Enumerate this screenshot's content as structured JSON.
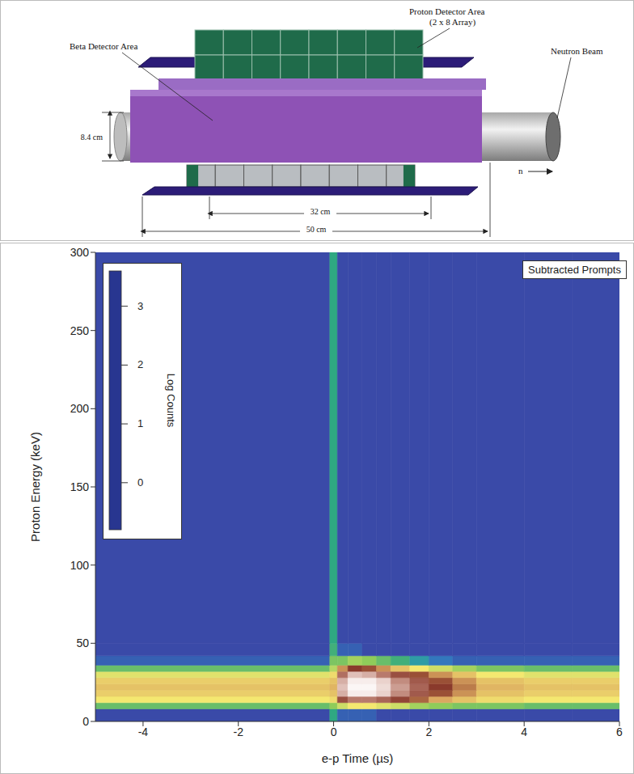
{
  "diagram": {
    "proton_label": [
      "Proton Detector Area",
      "(2 x 8 Array)"
    ],
    "beta_label": "Beta Detector Area",
    "beam_label": "Neutron Beam",
    "beam_arrow": "n",
    "dimensions": {
      "diameter": "8.4 cm",
      "detector_length": "32 cm",
      "total_length": "50 cm"
    },
    "proton_array": {
      "rows": 2,
      "cols": 8
    }
  },
  "chart_data": {
    "type": "heatmap",
    "xlabel": "e-p Time (µs)",
    "ylabel": "Proton Energy (keV)",
    "xlim": [
      -5,
      6
    ],
    "ylim": [
      0,
      300
    ],
    "xticks": [
      -4,
      -2,
      0,
      2,
      4,
      6
    ],
    "yticks": [
      0,
      50,
      100,
      150,
      200,
      250,
      300
    ],
    "x_edges": [
      -5,
      -0.08,
      0.08,
      0.3,
      0.6,
      0.9,
      1.2,
      1.6,
      2.0,
      2.5,
      3.0,
      4.0,
      5.0,
      6.0
    ],
    "y_edges": [
      0,
      8,
      12,
      16,
      20,
      24,
      28,
      32,
      36,
      42,
      50,
      300
    ],
    "z": [
      [
        -0.5,
        0.0,
        -0.4,
        -0.4,
        -0.4,
        -0.5,
        -0.5,
        -0.5,
        -0.5,
        -0.5,
        -0.5,
        -0.5,
        -0.5
      ],
      [
        0.3,
        0.5,
        0.8,
        1.0,
        1.0,
        0.9,
        0.8,
        0.6,
        0.5,
        0.4,
        0.4,
        0.3,
        0.3
      ],
      [
        1.0,
        1.1,
        2.2,
        2.6,
        2.6,
        2.4,
        2.1,
        1.8,
        1.5,
        1.3,
        1.1,
        1.0,
        1.0
      ],
      [
        1.2,
        1.3,
        2.9,
        3.4,
        3.4,
        3.1,
        2.7,
        2.3,
        1.9,
        1.6,
        1.3,
        1.2,
        1.2
      ],
      [
        1.3,
        1.4,
        3.0,
        3.5,
        3.5,
        3.2,
        2.8,
        2.4,
        2.0,
        1.7,
        1.4,
        1.3,
        1.3
      ],
      [
        1.2,
        1.3,
        2.9,
        3.4,
        3.4,
        3.1,
        2.7,
        2.3,
        1.9,
        1.6,
        1.3,
        1.2,
        1.2
      ],
      [
        0.9,
        1.1,
        2.5,
        3.0,
        2.9,
        2.6,
        2.2,
        1.9,
        1.6,
        1.3,
        1.0,
        0.9,
        0.9
      ],
      [
        0.3,
        0.7,
        1.6,
        2.0,
        1.9,
        1.6,
        1.3,
        1.0,
        0.8,
        0.6,
        0.4,
        0.3,
        0.3
      ],
      [
        -0.4,
        0.4,
        0.4,
        0.6,
        0.5,
        0.3,
        0.1,
        -0.1,
        -0.3,
        -0.4,
        -0.4,
        -0.4,
        -0.4
      ],
      [
        -0.5,
        0.1,
        -0.4,
        -0.4,
        -0.5,
        -0.5,
        -0.5,
        -0.5,
        -0.5,
        -0.5,
        -0.5,
        -0.5,
        -0.5
      ],
      [
        -0.5,
        0.0,
        -0.5,
        -0.5,
        -0.5,
        -0.5,
        -0.5,
        -0.5,
        -0.5,
        -0.5,
        -0.5,
        -0.5,
        -0.5
      ]
    ],
    "colorbar": {
      "label": "Log Counts",
      "range": [
        -0.8,
        3.6
      ],
      "ticks": [
        0,
        1,
        2,
        3
      ]
    },
    "annotations": [
      "Subtracted Prompts"
    ]
  }
}
